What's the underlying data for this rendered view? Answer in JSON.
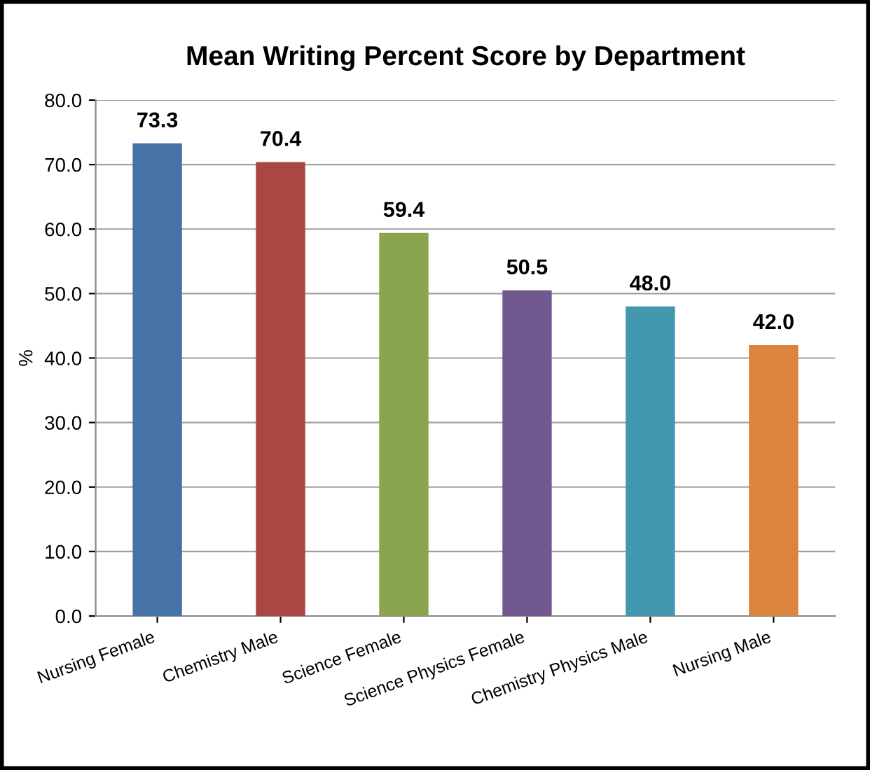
{
  "chart_data": {
    "type": "bar",
    "title": "Mean Writing Percent Score by Department",
    "ylabel": "%",
    "categories": [
      "Nursing Female",
      "Chemistry Male",
      "Science Female",
      "Science Physics Female",
      "Chemistry Physics Male",
      "Nursing Male"
    ],
    "values": [
      73.3,
      70.4,
      59.4,
      50.5,
      48.0,
      42.0
    ],
    "colors": [
      "#4572a7",
      "#aa4643",
      "#89a54e",
      "#71588f",
      "#4198af",
      "#db843d"
    ],
    "ylim": [
      0,
      80
    ],
    "yticks": [
      {
        "value": 0,
        "label": "0.0"
      },
      {
        "value": 10,
        "label": "10.0"
      },
      {
        "value": 20,
        "label": "20.0"
      },
      {
        "value": 30,
        "label": "30.0"
      },
      {
        "value": 40,
        "label": "40.0"
      },
      {
        "value": 50,
        "label": "50.0"
      },
      {
        "value": 60,
        "label": "60.0"
      },
      {
        "value": 70,
        "label": "70.0"
      },
      {
        "value": 80,
        "label": "80.0"
      }
    ],
    "value_labels": [
      "73.3",
      "70.4",
      "59.4",
      "50.5",
      "48.0",
      "42.0"
    ],
    "grid": "y",
    "legend": false
  }
}
